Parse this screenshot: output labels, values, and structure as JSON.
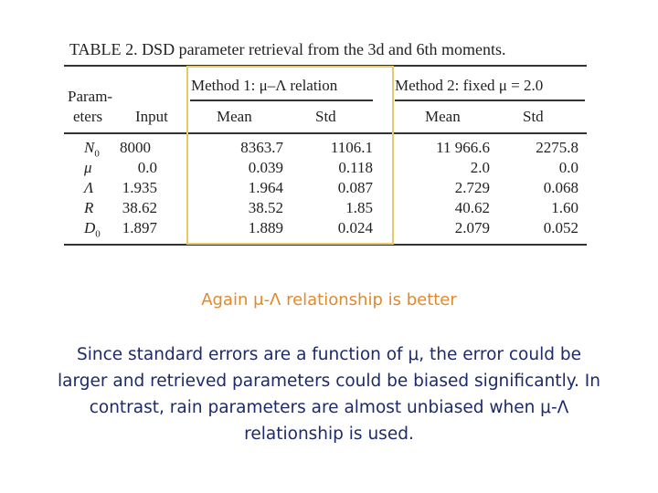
{
  "table": {
    "caption_label": "TABLE",
    "caption_text": "2. DSD parameter retrieval from the 3d and 6th moments.",
    "param_header": [
      "Param-",
      "eters"
    ],
    "input_header": "Input",
    "groups": [
      "Method 1: μ–Λ relation",
      "Method 2: fixed μ = 2.0"
    ],
    "subheaders": [
      "Mean",
      "Std",
      "Mean",
      "Std"
    ],
    "rows": [
      {
        "param": "N",
        "sub": "0",
        "cells": [
          "8000",
          "8363.7",
          "1106.1",
          "11 966.6",
          "2275.8"
        ]
      },
      {
        "param": "μ",
        "cells": [
          "0.0",
          "0.039",
          "0.118",
          "2.0",
          "0.0"
        ]
      },
      {
        "param": "Λ",
        "cells": [
          "1.935",
          "1.964",
          "0.087",
          "2.729",
          "0.068"
        ]
      },
      {
        "param": "R",
        "cells": [
          "38.62",
          "38.52",
          "1.85",
          "40.62",
          "1.60"
        ]
      },
      {
        "param": "D",
        "sub": "0",
        "cells": [
          "1.897",
          "1.889",
          "0.024",
          "2.079",
          "0.052"
        ]
      }
    ]
  },
  "highlight": "Again μ-Λ relationship is better",
  "paragraph": "Since standard errors are a function of μ, the error could be larger and retrieved parameters could be biased significantly. In contrast, rain parameters are almost unbiased when μ-Λ relationship is used."
}
